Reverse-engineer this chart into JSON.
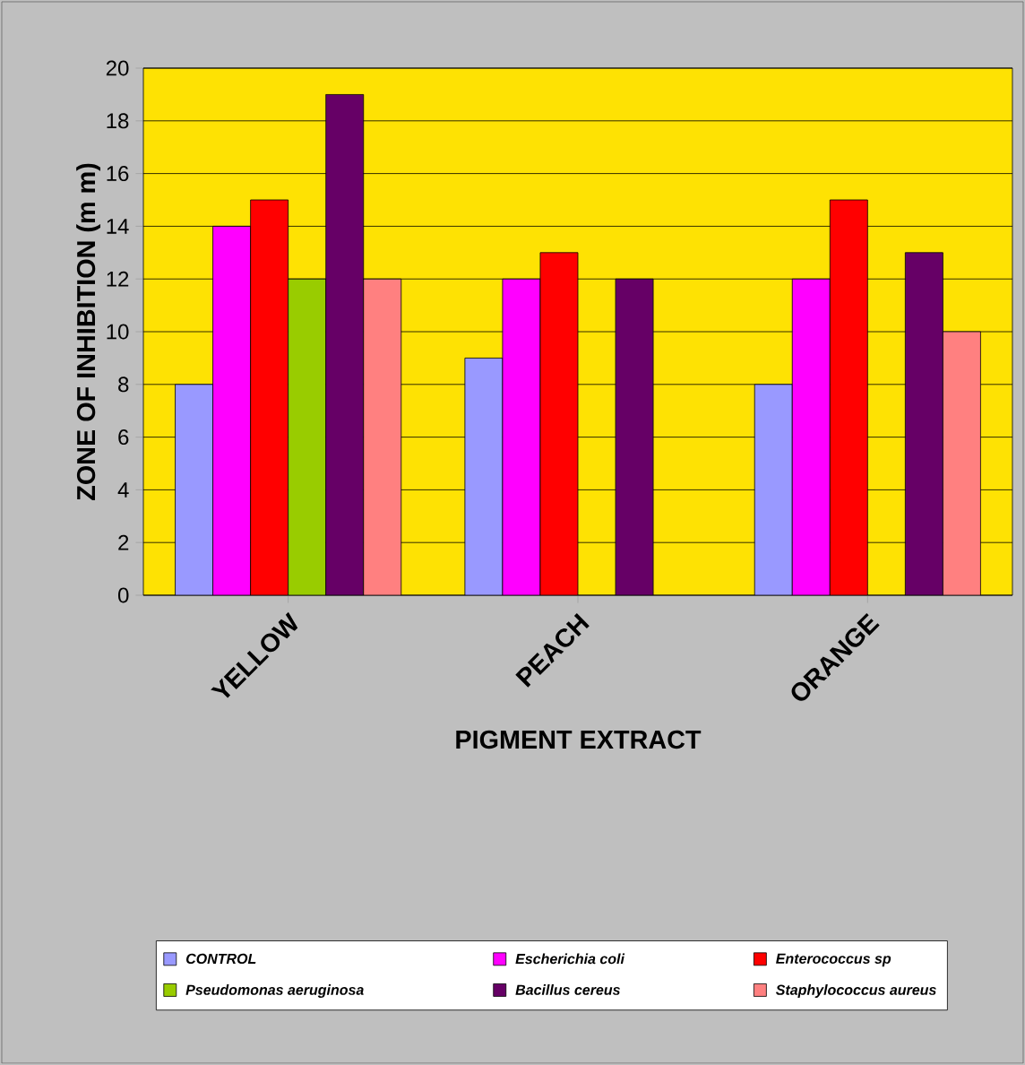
{
  "chart_data": {
    "type": "bar",
    "xlabel": "PIGMENT EXTRACT",
    "ylabel": "ZONE OF INHIBITION (m m)",
    "categories": [
      "YELLOW",
      "PEACH",
      "ORANGE"
    ],
    "series": [
      {
        "name": "CONTROL",
        "color": "#9999ff",
        "values": [
          8,
          9,
          8
        ]
      },
      {
        "name": "*Escherichia coli*",
        "color": "#ff00ff",
        "values": [
          14,
          12,
          12
        ]
      },
      {
        "name": "*Enterococcus sp*",
        "color": "#ff0000",
        "values": [
          15,
          13,
          15
        ]
      },
      {
        "name": "*Pseudomonas aeruginosa*",
        "color": "#99cc00",
        "values": [
          12,
          null,
          null
        ]
      },
      {
        "name": "*Bacillus cereus*",
        "color": "#660066",
        "values": [
          19,
          12,
          13
        ]
      },
      {
        "name": "*Staphylococcus aureus*",
        "color": "#ff8080",
        "values": [
          12,
          null,
          10
        ]
      }
    ],
    "ylim": [
      0,
      20
    ],
    "yticks": [
      0,
      2,
      4,
      6,
      8,
      10,
      12,
      14,
      16,
      18,
      20
    ],
    "grid": "y",
    "legend": "bottom"
  }
}
